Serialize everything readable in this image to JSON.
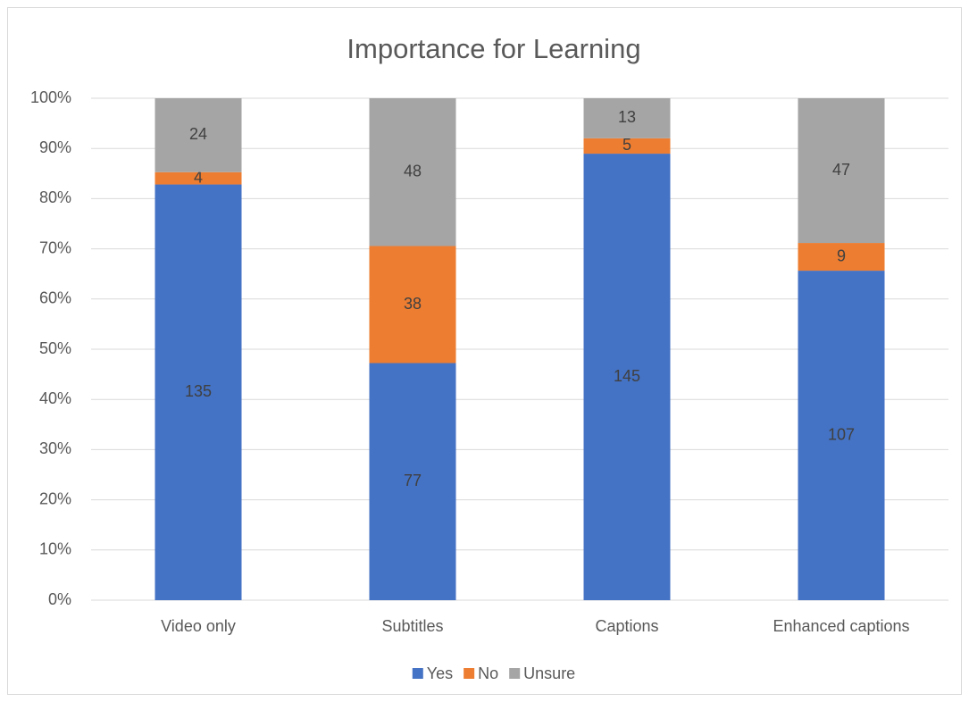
{
  "chart_data": {
    "type": "bar",
    "stacking": "percent",
    "title": "Importance for Learning",
    "categories": [
      "Video only",
      "Subtitles",
      "Captions",
      "Enhanced captions"
    ],
    "series": [
      {
        "name": "Yes",
        "color": "#4472c4",
        "values": [
          135,
          77,
          145,
          107
        ]
      },
      {
        "name": "No",
        "color": "#ed7d31",
        "values": [
          4,
          38,
          5,
          9
        ]
      },
      {
        "name": "Unsure",
        "color": "#a5a5a5",
        "values": [
          24,
          48,
          13,
          47
        ]
      }
    ],
    "ylim": [
      0,
      100
    ],
    "yticks": [
      {
        "value": 0,
        "label": "0%"
      },
      {
        "value": 10,
        "label": "10%"
      },
      {
        "value": 20,
        "label": "20%"
      },
      {
        "value": 30,
        "label": "30%"
      },
      {
        "value": 40,
        "label": "40%"
      },
      {
        "value": 50,
        "label": "50%"
      },
      {
        "value": 60,
        "label": "60%"
      },
      {
        "value": 70,
        "label": "70%"
      },
      {
        "value": 80,
        "label": "80%"
      },
      {
        "value": 90,
        "label": "90%"
      },
      {
        "value": 100,
        "label": "100%"
      }
    ],
    "grid": true,
    "legend": "bottom"
  }
}
